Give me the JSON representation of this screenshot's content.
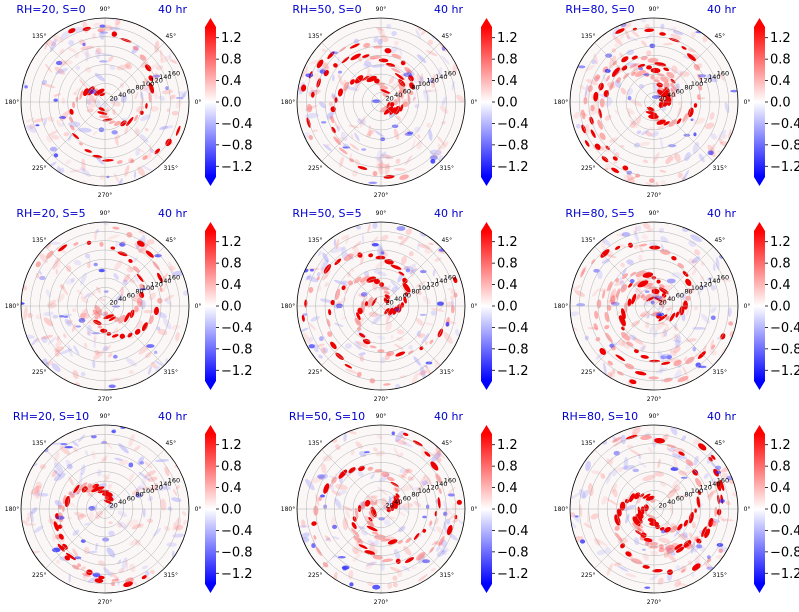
{
  "colors": {
    "positive": "#ff0000",
    "negative": "#0000ff",
    "neutral": "#ffffff",
    "title_text": "#0000cc",
    "axis": "#000000",
    "grid": "#b0b0b0"
  },
  "colorbar": {
    "cmap": "bwr",
    "extend": "both",
    "range": [
      -1.4,
      1.4
    ],
    "ticks": [
      "1.2",
      "0.8",
      "0.4",
      "0.0",
      "−0.4",
      "−0.8",
      "−1.2"
    ]
  },
  "polar_axis": {
    "angle_labels": [
      "0°",
      "45°",
      "90°",
      "135°",
      "180°",
      "225°",
      "270°",
      "315°"
    ],
    "radial_labels": [
      "20",
      "40",
      "60",
      "80",
      "100",
      "120",
      "140",
      "160"
    ],
    "r_max": 180
  },
  "chart_data": [
    {
      "type": "heatmap",
      "projection": "polar",
      "title_left": "RH=20, S=0",
      "title_right": "40 hr"
    },
    {
      "type": "heatmap",
      "projection": "polar",
      "title_left": "RH=50, S=0",
      "title_right": "40 hr"
    },
    {
      "type": "heatmap",
      "projection": "polar",
      "title_left": "RH=80, S=0",
      "title_right": "40 hr"
    },
    {
      "type": "heatmap",
      "projection": "polar",
      "title_left": "RH=20, S=5",
      "title_right": "40 hr"
    },
    {
      "type": "heatmap",
      "projection": "polar",
      "title_left": "RH=50, S=5",
      "title_right": "40 hr"
    },
    {
      "type": "heatmap",
      "projection": "polar",
      "title_left": "RH=80, S=5",
      "title_right": "40 hr"
    },
    {
      "type": "heatmap",
      "projection": "polar",
      "title_left": "RH=20, S=10",
      "title_right": "40 hr"
    },
    {
      "type": "heatmap",
      "projection": "polar",
      "title_left": "RH=50, S=10",
      "title_right": "40 hr"
    },
    {
      "type": "heatmap",
      "projection": "polar",
      "title_left": "RH=80, S=10",
      "title_right": "40 hr"
    }
  ]
}
